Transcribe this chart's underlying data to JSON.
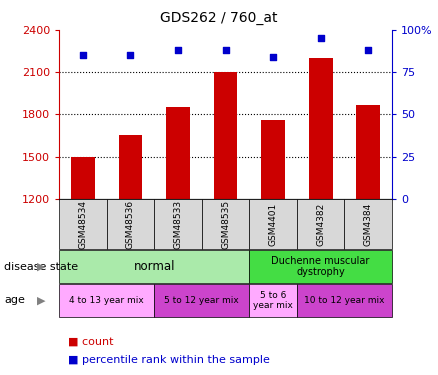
{
  "title": "GDS262 / 760_at",
  "samples": [
    "GSM48534",
    "GSM48536",
    "GSM48533",
    "GSM48535",
    "GSM4401",
    "GSM4382",
    "GSM4384"
  ],
  "counts": [
    1500,
    1650,
    1850,
    2100,
    1760,
    2200,
    1870
  ],
  "percentiles": [
    85,
    85,
    88,
    88,
    84,
    95,
    88
  ],
  "ylim_left": [
    1200,
    2400
  ],
  "ylim_right": [
    0,
    100
  ],
  "yticks_left": [
    1200,
    1500,
    1800,
    2100,
    2400
  ],
  "yticks_right": [
    0,
    25,
    50,
    75,
    100
  ],
  "bar_color": "#cc0000",
  "dot_color": "#0000cc",
  "bar_width": 0.5,
  "age_groups": [
    {
      "label": "4 to 13 year mix",
      "start": 0,
      "end": 2,
      "color": "#ffaaff"
    },
    {
      "label": "5 to 12 year mix",
      "start": 2,
      "end": 4,
      "color": "#cc44cc"
    },
    {
      "label": "5 to 6\nyear mix",
      "start": 4,
      "end": 5,
      "color": "#ffaaff"
    },
    {
      "label": "10 to 12 year mix",
      "start": 5,
      "end": 7,
      "color": "#cc44cc"
    }
  ]
}
